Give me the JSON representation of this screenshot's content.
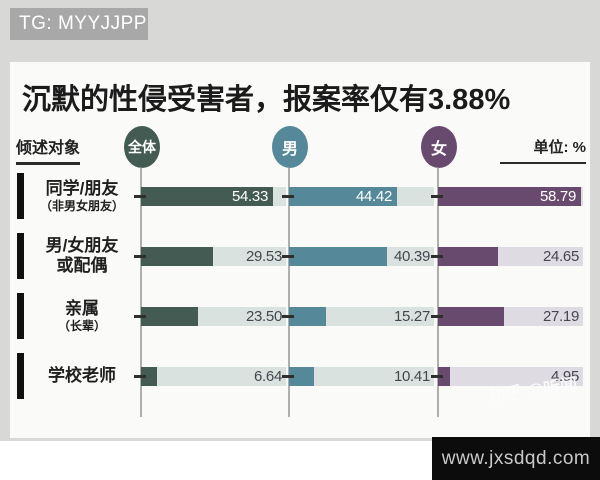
{
  "watermarks": {
    "tg": "TG: MYYJJPP",
    "zhihu": "知乎 @听闻",
    "site": "www.jxsdqd.com"
  },
  "title": "沉默的性侵受害者，报案率仅有3.88%",
  "legend": {
    "axis_label": "倾述对象",
    "unit_label": "单位: %"
  },
  "chart_data": {
    "type": "bar",
    "orientation": "horizontal",
    "title": "沉默的性侵受害者，报案率仅有3.88%",
    "unit": "%",
    "xlim": [
      0,
      60
    ],
    "grid": "vertical baseline per series group",
    "legend_position": "top",
    "categories": [
      {
        "lines": [
          {
            "text": "同学/朋友",
            "small": false
          },
          {
            "text": "（非男女朋友）",
            "small": true
          }
        ]
      },
      {
        "lines": [
          {
            "text": "男/女朋友",
            "small": false
          },
          {
            "text": "或配偶",
            "small": false
          }
        ]
      },
      {
        "lines": [
          {
            "text": "亲属",
            "small": false
          },
          {
            "text": "（长辈）",
            "small": true
          }
        ]
      },
      {
        "lines": [
          {
            "text": "学校老师",
            "small": false
          }
        ]
      }
    ],
    "series": [
      {
        "name": "全体",
        "color": "#435b52",
        "values": [
          54.33,
          29.53,
          23.5,
          6.64
        ],
        "display": [
          "54.33",
          "29.53",
          "23.50",
          "6.64"
        ]
      },
      {
        "name": "男",
        "color": "#55899a",
        "values": [
          44.42,
          40.39,
          15.27,
          10.41
        ],
        "display": [
          "44.42",
          "40.39",
          "15.27",
          "10.41"
        ]
      },
      {
        "name": "女",
        "color": "#684a6e",
        "values": [
          58.79,
          24.65,
          27.19,
          4.95
        ],
        "display": [
          "58.79",
          "24.65",
          "27.19",
          "4.95"
        ]
      }
    ],
    "value_label_rule": "white label inside bar end when value > 42, otherwise dark label right-aligned at track end"
  },
  "colors": {
    "outer_gray": "#d8d8d6",
    "card_bg": "#fafaf8",
    "track": "#d9e2de",
    "track_female": "#dedce2",
    "grid_line": "#8d8d8d",
    "tick_black": "#101010",
    "value_dark": "#46464f",
    "site_box_bg": "#0c0c0c"
  }
}
